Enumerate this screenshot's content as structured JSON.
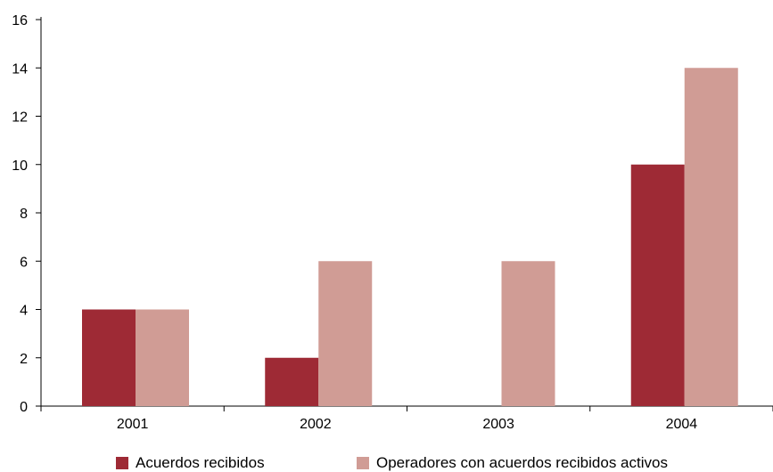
{
  "chart_data": {
    "type": "bar",
    "categories": [
      "2001",
      "2002",
      "2003",
      "2004"
    ],
    "series": [
      {
        "name": "Acuerdos recibidos",
        "values": [
          4,
          2,
          0,
          10
        ],
        "color": "#9e2a35"
      },
      {
        "name": "Operadores con acuerdos recibidos activos",
        "values": [
          4,
          6,
          6,
          14
        ],
        "color": "#d09c95"
      }
    ],
    "ylim": [
      0,
      16
    ],
    "yticks": [
      0,
      2,
      4,
      6,
      8,
      10,
      12,
      14,
      16
    ],
    "title": "",
    "xlabel": "",
    "ylabel": "",
    "grid": false,
    "legend_position": "bottom"
  }
}
